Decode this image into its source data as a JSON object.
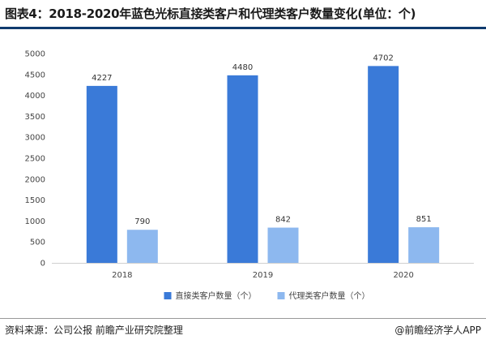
{
  "title": "图表4：2018-2020年蓝色光标直接类客户和代理类客户数量变化(单位：个)",
  "source": "资料来源：公司公报 前瞻产业研究院整理",
  "brand": "@前瞻经济学人APP",
  "colors": {
    "direct": "#3a7ad8",
    "agent": "#8db8ef",
    "rule_top": "#0f3a6e"
  },
  "chart_data": {
    "type": "bar",
    "categories": [
      "2018",
      "2019",
      "2020"
    ],
    "series": [
      {
        "name": "直接类客户数量（个）",
        "values": [
          4227,
          4480,
          4702
        ],
        "labels": [
          "4227",
          "4480",
          "4702"
        ]
      },
      {
        "name": "代理类客户数量（个）",
        "values": [
          790,
          842,
          851
        ],
        "labels": [
          "790",
          "842",
          "851"
        ]
      }
    ],
    "ylim": [
      0,
      5000
    ],
    "yticks": [
      {
        "value": 0,
        "label": "0"
      },
      {
        "value": 500,
        "label": "500"
      },
      {
        "value": 1000,
        "label": "1000"
      },
      {
        "value": 1500,
        "label": "1500"
      },
      {
        "value": 2000,
        "label": "2000"
      },
      {
        "value": 2500,
        "label": "2500"
      },
      {
        "value": 3000,
        "label": "3000"
      },
      {
        "value": 3500,
        "label": "3500"
      },
      {
        "value": 4000,
        "label": "4000"
      },
      {
        "value": 4500,
        "label": "4500"
      },
      {
        "value": 5000,
        "label": "5000"
      }
    ],
    "grid": false,
    "legend": "bottom"
  }
}
